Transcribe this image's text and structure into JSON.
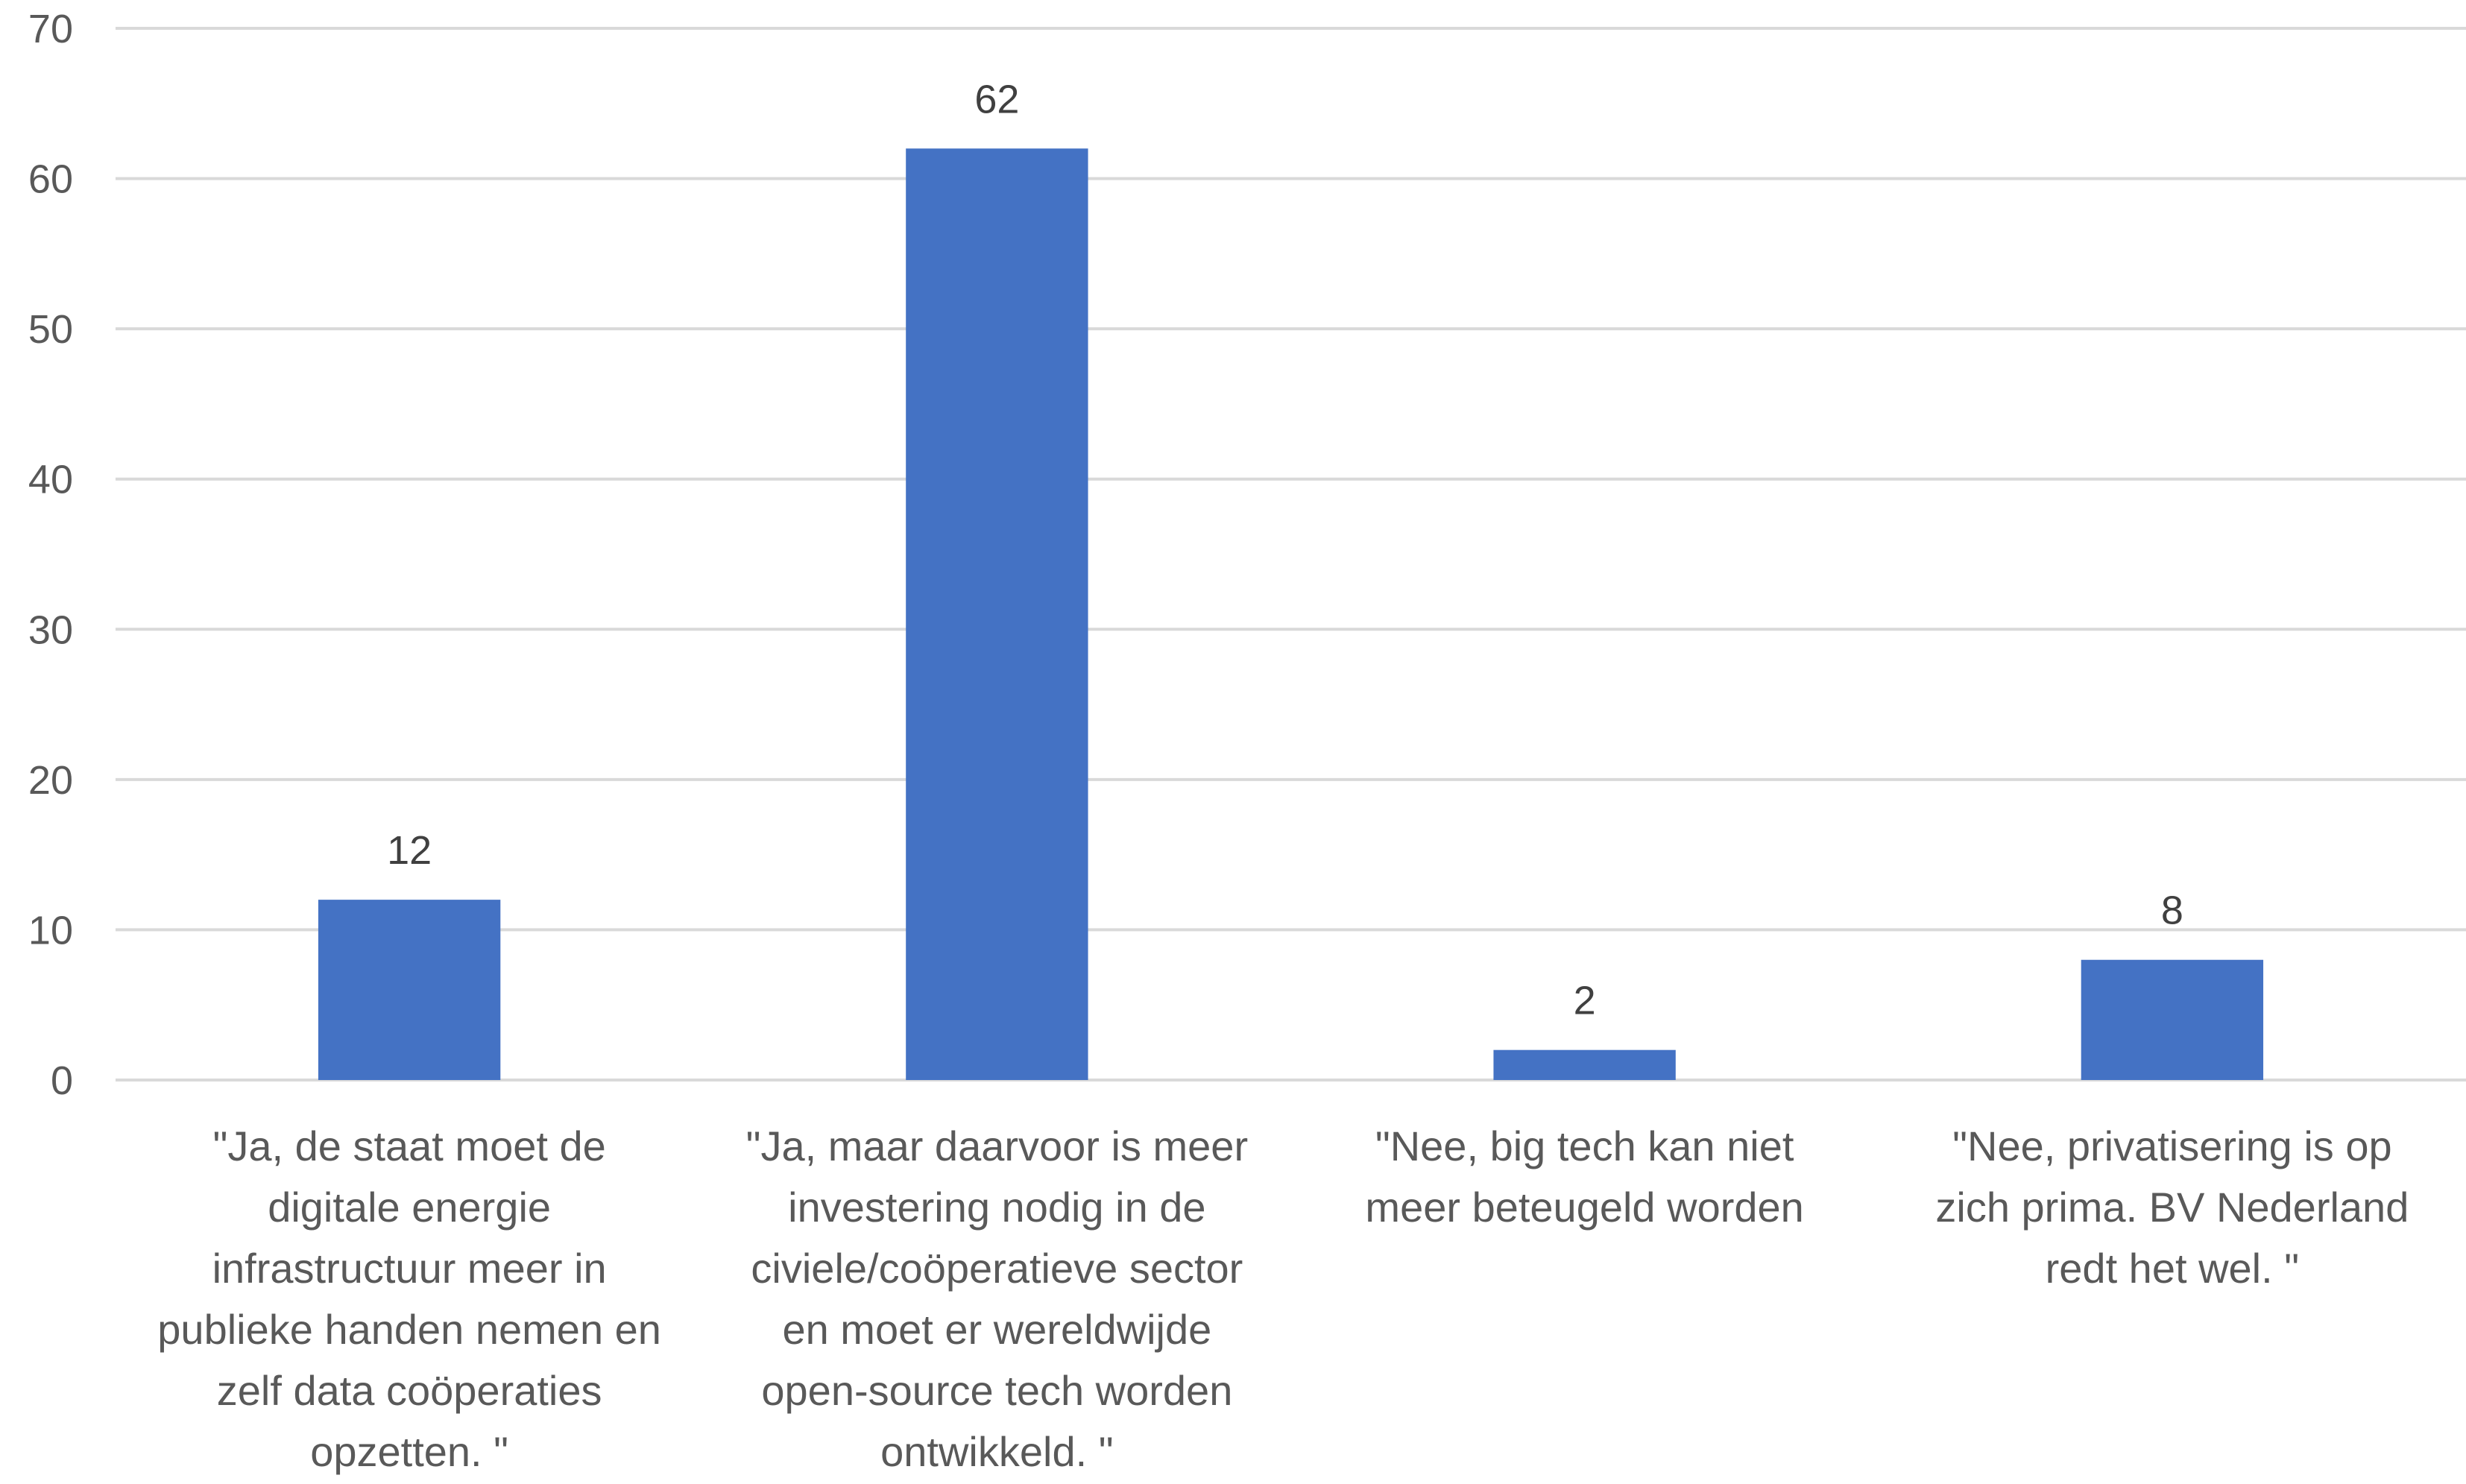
{
  "chart_data": {
    "type": "bar",
    "categories": [
      "\"Ja,  de staat moet de digitale energie infrastructuur meer in publieke handen nemen en zelf data coöperaties opzetten. \"",
      "\"Ja,  maar daarvoor is meer investering nodig in de civiele/coöperatieve sector en moet er wereldwijde open-source tech worden ontwikkeld. \"",
      "\"Nee,  big tech kan niet meer beteugeld worden",
      "\"Nee,  privatisering is op zich prima. BV Nederland redt het wel. \""
    ],
    "category_lines": [
      [
        "\"Ja,  de staat moet de",
        "digitale energie",
        "infrastructuur meer in",
        "publieke handen nemen en",
        "zelf data coöperaties",
        "opzetten. \""
      ],
      [
        "\"Ja,  maar daarvoor is meer",
        "investering nodig in de",
        "civiele/coöperatieve sector",
        "en moet er wereldwijde",
        "open-source tech worden",
        "ontwikkeld. \""
      ],
      [
        "\"Nee,  big tech kan niet",
        "meer beteugeld worden"
      ],
      [
        "\"Nee,  privatisering is op",
        "zich prima. BV Nederland",
        "redt het wel. \""
      ]
    ],
    "values": [
      12,
      62,
      2,
      8
    ],
    "data_labels": [
      "12",
      "62",
      "2",
      "8"
    ],
    "title": "",
    "xlabel": "",
    "ylabel": "",
    "ylim": [
      0,
      70
    ],
    "yticks": [
      0,
      10,
      20,
      30,
      40,
      50,
      60,
      70
    ],
    "ytick_labels": [
      "0",
      "10",
      "20",
      "30",
      "40",
      "50",
      "60",
      "70"
    ],
    "grid": true,
    "legend": "none",
    "bar_color": "#4472C4"
  }
}
